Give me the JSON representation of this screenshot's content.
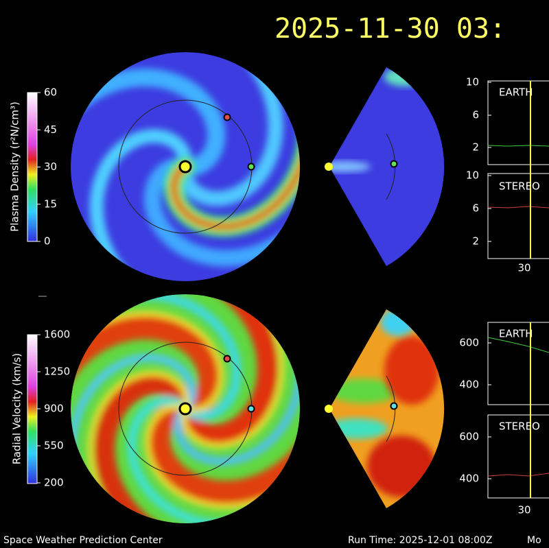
{
  "title": "2025-11-30 03:",
  "colorbars": [
    {
      "label": "Plasma Density (r²N/cm³)",
      "ticks": [
        "60",
        "45",
        "30",
        "15",
        "0"
      ]
    },
    {
      "label": "Radial Velocity (km/s)",
      "ticks": [
        "1600",
        "1250",
        "900",
        "550",
        "200"
      ]
    }
  ],
  "timeseries": [
    {
      "label": "EARTH",
      "yticks": [
        "10",
        "6",
        "2"
      ]
    },
    {
      "label": "STEREO",
      "yticks": [
        "10",
        "6",
        "2"
      ],
      "xtick": "30"
    },
    {
      "label": "EARTH",
      "yticks": [
        "600",
        "400"
      ]
    },
    {
      "label": "STEREO",
      "yticks": [
        "600",
        "400"
      ],
      "xtick": "30"
    }
  ],
  "footer": {
    "left": "Space Weather Prediction Center",
    "run_time": "Run Time: 2025-12-01 08:00Z",
    "right": "Mo"
  }
}
